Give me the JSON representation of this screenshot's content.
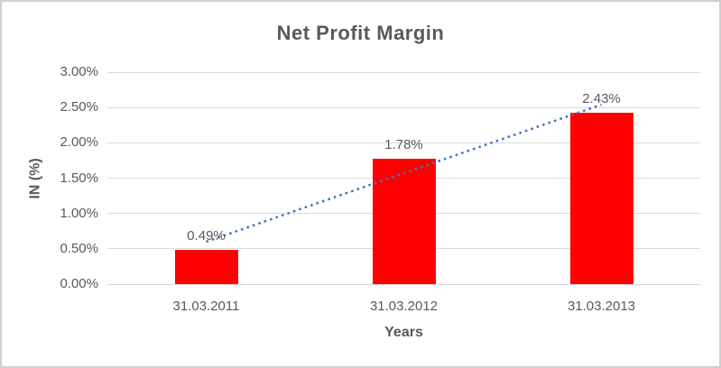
{
  "window": {
    "background": "#FFFFFF",
    "border_color": "#D0D0D0"
  },
  "chart_data": {
    "type": "bar",
    "title": "Net Profit Margin",
    "xlabel": "Years",
    "ylabel": "IN (%)",
    "categories": [
      "31.03.2011",
      "31.03.2012",
      "31.03.2013"
    ],
    "values": [
      0.49,
      1.78,
      2.43
    ],
    "value_labels": [
      "0.49%",
      "1.78%",
      "2.43%"
    ],
    "y_ticks": [
      "3.00%",
      "2.50%",
      "2.00%",
      "1.50%",
      "1.00%",
      "0.50%",
      "0.00%"
    ],
    "y_tick_values": [
      3.0,
      2.5,
      2.0,
      1.5,
      1.0,
      0.5,
      0.0
    ],
    "ylim": [
      0,
      3.0
    ],
    "grid": true,
    "legend": "none",
    "bar_color": "#FF0000",
    "gridline_color": "#D9D9D9",
    "axis_line_color": "#D6D6D6",
    "text_color": "#595959",
    "trendline": {
      "style": "dotted",
      "color": "#4472C4",
      "start_value": 0.6,
      "end_value": 2.54
    }
  }
}
